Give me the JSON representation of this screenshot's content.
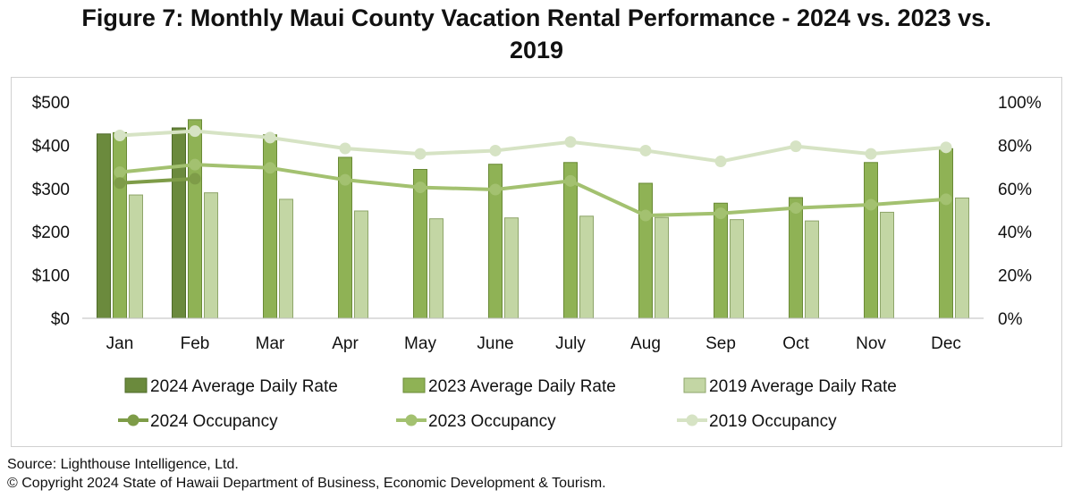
{
  "title_line1": "Figure 7: Monthly Maui County Vacation Rental Performance - 2024 vs. 2023 vs.",
  "title_line2": "2019",
  "source_text": "Source: Lighthouse Intelligence, Ltd.",
  "copyright_text": "© Copyright 2024 State of Hawaii Department of Business, Economic Development & Tourism.",
  "colors": {
    "adr2024": "#6b8a3d",
    "adr2023": "#8fb255",
    "adr2019": "#c3d6a4",
    "occ2024": "#7e9c48",
    "occ2023": "#a3c170",
    "occ2019": "#d6e3c4"
  },
  "chart_data": {
    "type": "bar",
    "title": "Figure 7: Monthly Maui County Vacation Rental Performance - 2024 vs. 2023 vs. 2019",
    "categories": [
      "Jan",
      "Feb",
      "Mar",
      "Apr",
      "May",
      "June",
      "July",
      "Aug",
      "Sep",
      "Oct",
      "Nov",
      "Dec"
    ],
    "y_left": {
      "ylim": [
        0,
        500
      ],
      "ticks": [
        "$0",
        "$100",
        "$200",
        "$300",
        "$400",
        "$500"
      ]
    },
    "y_right": {
      "ylim": [
        0,
        100
      ],
      "ticks": [
        "0%",
        "20%",
        "40%",
        "60%",
        "80%",
        "100%"
      ]
    },
    "bar_series": [
      {
        "name": "2024 Average Daily Rate",
        "values": [
          426,
          440,
          null,
          null,
          null,
          null,
          null,
          null,
          null,
          null,
          null,
          null
        ]
      },
      {
        "name": "2023 Average Daily Rate",
        "values": [
          429,
          459,
          424,
          372,
          344,
          356,
          360,
          312,
          266,
          279,
          360,
          392
        ]
      },
      {
        "name": "2019 Average Daily Rate",
        "values": [
          285,
          290,
          275,
          248,
          230,
          232,
          236,
          233,
          228,
          225,
          245,
          278
        ]
      }
    ],
    "line_series": [
      {
        "name": "2024 Occupancy",
        "values": [
          62.5,
          64.5,
          null,
          null,
          null,
          null,
          null,
          null,
          null,
          null,
          null,
          null
        ]
      },
      {
        "name": "2023 Occupancy",
        "values": [
          67.5,
          71,
          69.5,
          64,
          60.5,
          59.5,
          63.5,
          47.5,
          48.5,
          51,
          52.5,
          55
        ]
      },
      {
        "name": "2019 Occupancy",
        "values": [
          84.5,
          86.5,
          83.5,
          78.5,
          76,
          77.5,
          81.5,
          77.5,
          72.5,
          79.5,
          76,
          79
        ]
      }
    ],
    "grid": false,
    "legend_position": "bottom"
  }
}
